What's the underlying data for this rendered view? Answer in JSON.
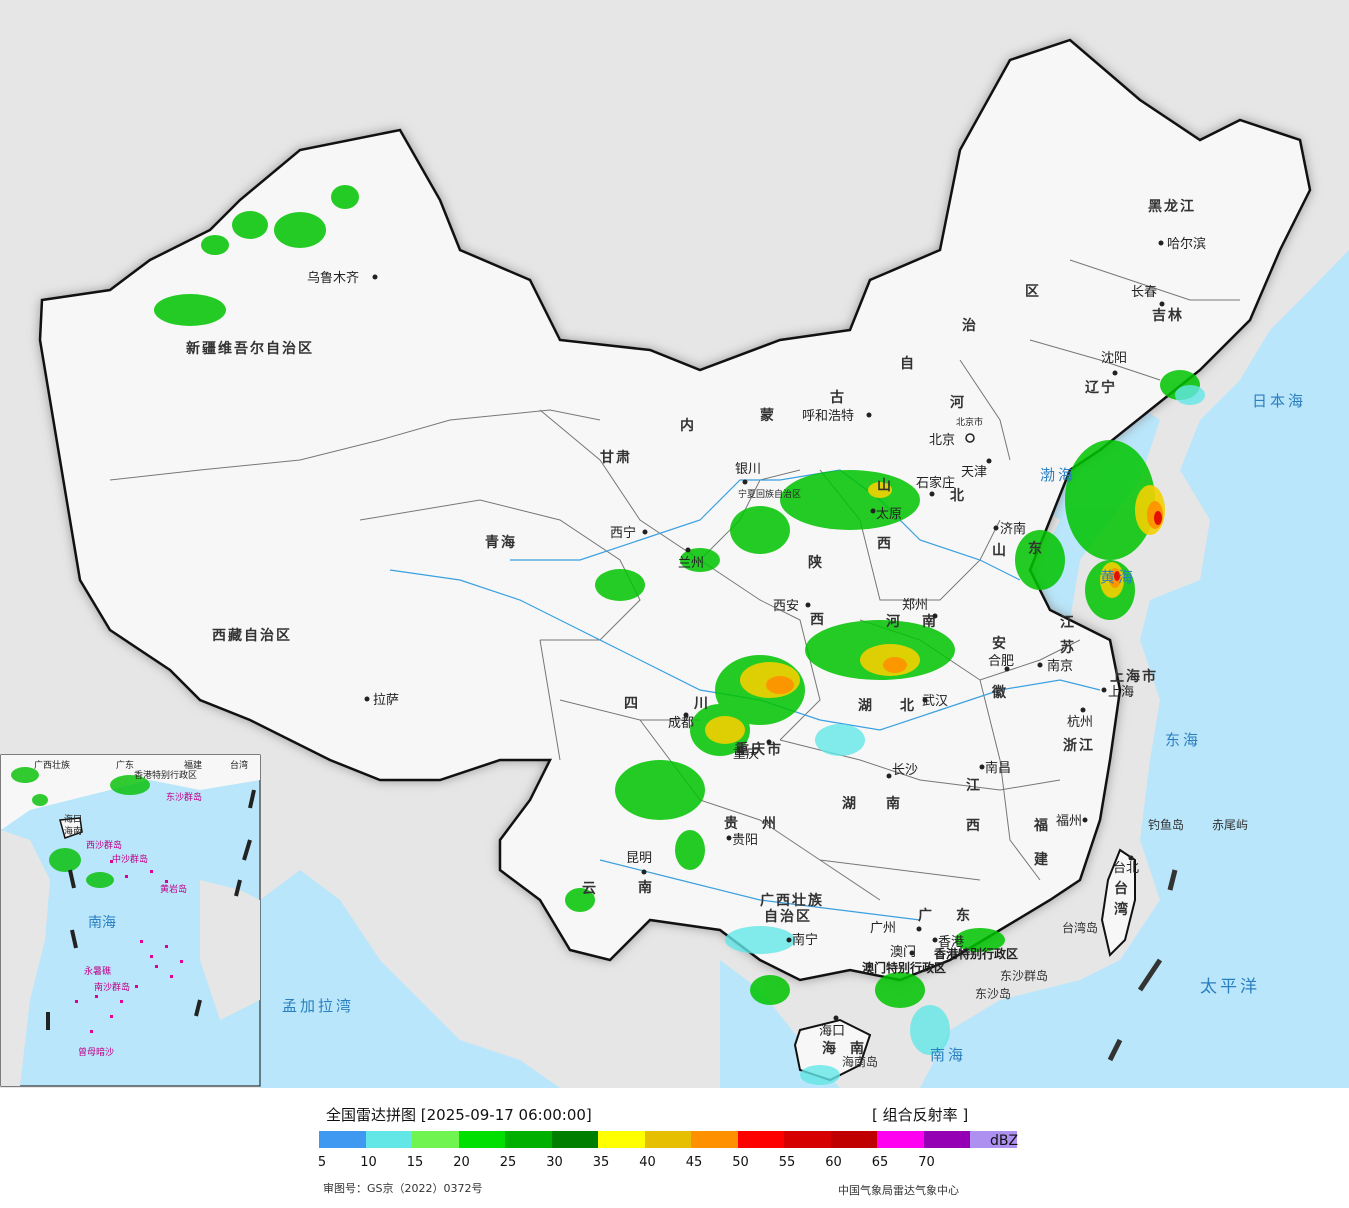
{
  "map": {
    "colors": {
      "land_bg": "#e6e6e6",
      "china_fill": "#f7f7f7",
      "sea": "#b9e6fa",
      "border": "#111111",
      "coast_glow": "#9a9a9a"
    },
    "regions": {
      "xinjiang": "新疆维吾尔自治区",
      "xizang": "西藏自治区",
      "qinghai": "青海",
      "gansu": "甘肃",
      "neimenggu_1": "内",
      "neimenggu_2": "蒙",
      "neimenggu_3": "古",
      "neimenggu_4": "自",
      "neimenggu_5": "治",
      "neimenggu_6": "区",
      "heilongjiang": "黑龙江",
      "jilin": "吉林",
      "liaoning": "辽宁",
      "hebei_1": "河",
      "hebei_2": "北",
      "shanxi_1": "山",
      "shanxi_2": "西",
      "shaanxi_1": "陕",
      "shaanxi_2": "西",
      "shandong_1": "山",
      "shandong_2": "东",
      "henan_1": "河",
      "henan_2": "南",
      "jiangsu_1": "江",
      "jiangsu_2": "苏",
      "anhui_1": "安",
      "anhui_2": "徽",
      "hubei_1": "湖",
      "hubei_2": "北",
      "sichuan_1": "四",
      "sichuan_2": "川",
      "chongqing": "重庆市",
      "hunan_1": "湖",
      "hunan_2": "南",
      "jiangxi_1": "江",
      "jiangxi_2": "西",
      "zhejiang": "浙江",
      "fujian_1": "福",
      "fujian_2": "建",
      "guizhou_1": "贵",
      "guizhou_2": "州",
      "yunnan_1": "云",
      "yunnan_2": "南",
      "guangxi_1": "广西壮族",
      "guangxi_2": "自治区",
      "guangdong_1": "广",
      "guangdong_2": "东",
      "hainan_1": "海",
      "hainan_2": "南",
      "taiwan_1": "台",
      "taiwan_2": "湾",
      "shanghai": "上海市",
      "tianjin": "天津",
      "ningxia": "宁夏回族自治区",
      "hongkong": "香港特别行政区",
      "macau": "澳门特别行政区"
    },
    "cities": {
      "urumqi": "乌鲁木齐",
      "lhasa": "拉萨",
      "xining": "西宁",
      "lanzhou": "兰州",
      "yinchuan": "银川",
      "hohhot": "呼和浩特",
      "beijing": "北京",
      "beijing_small": "北京市",
      "tianjin": "天津",
      "shijiazhuang": "石家庄",
      "taiyuan": "太原",
      "jinan": "济南",
      "zhengzhou": "郑州",
      "xian": "西安",
      "hefei": "合肥",
      "nanjing": "南京",
      "shanghai": "上海",
      "hangzhou": "杭州",
      "wuhan": "武汉",
      "chengdu": "成都",
      "chongqing": "重庆",
      "changsha": "长沙",
      "nanchang": "南昌",
      "fuzhou": "福州",
      "taibei": "台北",
      "guiyang": "贵阳",
      "kunming": "昆明",
      "nanning": "南宁",
      "guangzhou": "广州",
      "hongkong": "香港",
      "macau": "澳门",
      "haikou": "海口",
      "shenyang": "沈阳",
      "changchun": "长春",
      "harbin": "哈尔滨"
    },
    "seas": {
      "bohai": "渤海",
      "huanghai": "黄海",
      "donghai": "东海",
      "nanhai": "南海",
      "riben": "日本海",
      "taiping": "太平洋",
      "mengjiala": "孟加拉湾"
    },
    "islands": {
      "diaoyu": "钓鱼岛",
      "chiwei": "赤尾屿",
      "taiwan_island": "台湾岛",
      "dongsha": "东沙群岛",
      "dongsha_dao": "东沙岛",
      "hainan_dao": "海南岛"
    },
    "inset": {
      "sea": "南海",
      "labels": [
        "广西壮族",
        "广东",
        "福建",
        "台湾",
        "海口",
        "海南",
        "香港特别行政区",
        "西沙群岛",
        "中沙群岛",
        "黄岩岛",
        "东沙群岛",
        "南沙群岛",
        "永暑礁",
        "曾母暗沙"
      ]
    }
  },
  "legend": {
    "title": "全国雷达拼图 [2025-09-17 06:00:00]",
    "product": "[ 组合反射率 ]",
    "unit": "dBZ",
    "colors": [
      "#3f99f0",
      "#63e6e6",
      "#70f550",
      "#00e000",
      "#00b000",
      "#007e00",
      "#ffff00",
      "#e6c000",
      "#ff9000",
      "#ff0000",
      "#d60000",
      "#c00000",
      "#ff00f0",
      "#9600b4",
      "#ad90f0"
    ],
    "ticks": [
      "5",
      "10",
      "15",
      "20",
      "25",
      "30",
      "35",
      "40",
      "45",
      "50",
      "55",
      "60",
      "65",
      "70"
    ],
    "approval": "审图号：GS京（2022）0372号",
    "agency": "中国气象局雷达气象中心"
  }
}
